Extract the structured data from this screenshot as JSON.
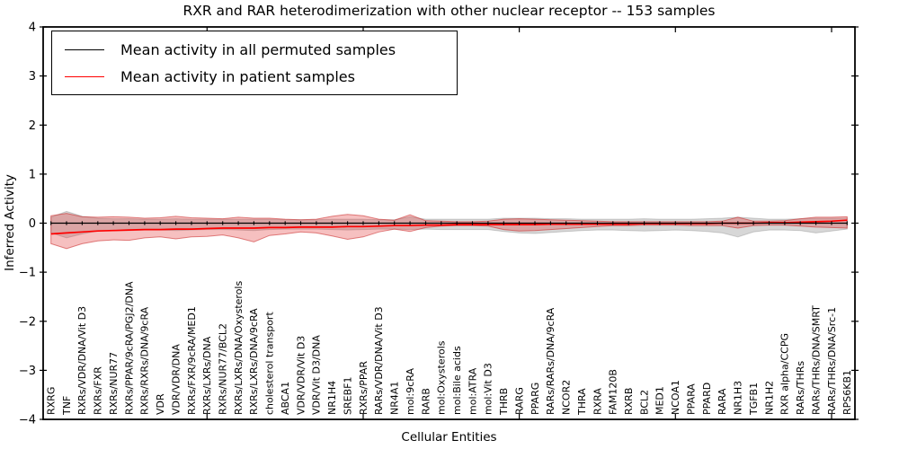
{
  "chart_data": {
    "type": "line",
    "title": "RXR and RAR heterodimerization with other nuclear receptor -- 153 samples",
    "xlabel": "Cellular Entities",
    "ylabel": "Inferred Activity",
    "ylim": [
      -4,
      4
    ],
    "yticks": [
      -4,
      -3,
      -2,
      -1,
      0,
      1,
      2,
      3,
      4
    ],
    "x_major_tick_indices": [
      10,
      20,
      30,
      40,
      50
    ],
    "grid": false,
    "legend_position": "upper left",
    "legend": [
      {
        "label": "Mean activity in all permuted samples",
        "color": "#000000"
      },
      {
        "label": "Mean activity in patient samples",
        "color": "#ff0000"
      }
    ],
    "categories": [
      "RXRG",
      "TNF",
      "RXRs/VDR/DNA/Vit D3",
      "RXRs/FXR",
      "RXRs/NUR77",
      "RXRs/PPAR/9cRA/PGJ2/DNA",
      "RXRs/RXRs/DNA/9cRA",
      "VDR",
      "VDR/VDR/DNA",
      "RXRs/FXR/9cRA/MED1",
      "RXRs/LXRs/DNA",
      "RXRs/NUR77/BCL2",
      "RXRs/LXRs/DNA/Oxysterols",
      "RXRs/LXRs/DNA/9cRA",
      "cholesterol transport",
      "ABCA1",
      "VDR/VDR/Vit D3",
      "VDR/Vit D3/DNA",
      "NR1H4",
      "SREBF1",
      "RXRs/PPAR",
      "RARs/VDR/DNA/Vit D3",
      "NR4A1",
      "mol:9cRA",
      "RARB",
      "mol:Oxysterols",
      "mol:Bile acids",
      "mol:ATRA",
      "mol:Vit D3",
      "THRB",
      "RARG",
      "PPARG",
      "RARs/RARs/DNA/9cRA",
      "NCOR2",
      "THRA",
      "RXRA",
      "FAM120B",
      "RXRB",
      "BCL2",
      "MED1",
      "NCOA1",
      "PPARA",
      "PPARD",
      "RARA",
      "NR1H3",
      "TGFB1",
      "NR1H2",
      "RXR alpha/CCPG",
      "RARs/THRs",
      "RARs/THRs/DNA/SMRT",
      "RARs/THRs/DNA/Src-1",
      "RPS6KB1"
    ],
    "series": [
      {
        "name": "Mean activity in all permuted samples",
        "color": "#000000",
        "marker": "tick",
        "values": [
          0,
          0,
          0,
          0,
          0,
          0,
          0,
          0,
          0,
          0,
          0,
          0,
          0,
          0,
          0,
          0,
          0,
          0,
          0,
          0,
          0,
          0,
          0,
          0,
          0,
          0,
          0,
          0,
          0,
          0,
          0,
          0,
          0,
          0,
          0,
          0,
          0,
          0,
          0,
          0,
          0,
          0,
          0,
          0,
          0,
          0,
          0,
          0,
          0,
          0,
          0,
          0
        ]
      },
      {
        "name": "Mean activity in patient samples",
        "color": "#ff0000",
        "marker": null,
        "values": [
          -0.22,
          -0.2,
          -0.18,
          -0.16,
          -0.15,
          -0.14,
          -0.13,
          -0.13,
          -0.12,
          -0.12,
          -0.11,
          -0.1,
          -0.1,
          -0.1,
          -0.09,
          -0.09,
          -0.08,
          -0.08,
          -0.08,
          -0.07,
          -0.07,
          -0.06,
          -0.05,
          -0.05,
          -0.04,
          -0.04,
          -0.03,
          -0.03,
          -0.03,
          -0.03,
          -0.03,
          -0.03,
          -0.02,
          -0.02,
          -0.02,
          -0.02,
          -0.02,
          -0.02,
          -0.01,
          -0.01,
          -0.01,
          -0.01,
          -0.01,
          0.0,
          0.0,
          0.0,
          0.01,
          0.01,
          0.02,
          0.03,
          0.04,
          0.06
        ]
      }
    ],
    "bands": [
      {
        "name": "permuted-samples-band",
        "fill": "rgba(140,140,140,0.35)",
        "edge": "rgba(110,110,110,0.30)",
        "upper": [
          0.12,
          0.24,
          0.14,
          0.1,
          0.09,
          0.09,
          0.08,
          0.08,
          0.09,
          0.08,
          0.08,
          0.08,
          0.08,
          0.08,
          0.08,
          0.07,
          0.07,
          0.07,
          0.08,
          0.08,
          0.08,
          0.07,
          0.07,
          0.13,
          0.08,
          0.08,
          0.08,
          0.08,
          0.08,
          0.1,
          0.1,
          0.1,
          0.09,
          0.09,
          0.08,
          0.08,
          0.08,
          0.08,
          0.09,
          0.08,
          0.08,
          0.08,
          0.09,
          0.1,
          0.12,
          0.1,
          0.08,
          0.08,
          0.09,
          0.1,
          0.1,
          0.1
        ],
        "lower": [
          -0.2,
          -0.3,
          -0.22,
          -0.16,
          -0.15,
          -0.15,
          -0.14,
          -0.14,
          -0.15,
          -0.14,
          -0.13,
          -0.13,
          -0.14,
          -0.15,
          -0.13,
          -0.12,
          -0.12,
          -0.12,
          -0.13,
          -0.14,
          -0.13,
          -0.12,
          -0.12,
          -0.13,
          -0.12,
          -0.13,
          -0.13,
          -0.13,
          -0.13,
          -0.17,
          -0.2,
          -0.21,
          -0.19,
          -0.17,
          -0.15,
          -0.14,
          -0.14,
          -0.15,
          -0.16,
          -0.15,
          -0.14,
          -0.15,
          -0.17,
          -0.2,
          -0.28,
          -0.18,
          -0.14,
          -0.14,
          -0.15,
          -0.2,
          -0.16,
          -0.12
        ]
      },
      {
        "name": "patient-samples-band",
        "fill": "rgba(228,60,60,0.32)",
        "edge": "rgba(200,35,35,0.55)",
        "upper": [
          0.15,
          0.2,
          0.13,
          0.12,
          0.13,
          0.12,
          0.1,
          0.11,
          0.14,
          0.11,
          0.1,
          0.09,
          0.12,
          0.1,
          0.1,
          0.08,
          0.07,
          0.08,
          0.14,
          0.18,
          0.15,
          0.08,
          0.06,
          0.17,
          0.05,
          0.04,
          0.03,
          0.03,
          0.04,
          0.08,
          0.09,
          0.08,
          0.07,
          0.06,
          0.05,
          0.04,
          0.03,
          0.03,
          0.03,
          0.03,
          0.03,
          0.03,
          0.03,
          0.04,
          0.12,
          0.04,
          0.04,
          0.05,
          0.09,
          0.12,
          0.12,
          0.13
        ],
        "lower": [
          -0.42,
          -0.52,
          -0.42,
          -0.36,
          -0.34,
          -0.35,
          -0.3,
          -0.28,
          -0.32,
          -0.28,
          -0.27,
          -0.24,
          -0.3,
          -0.38,
          -0.25,
          -0.22,
          -0.18,
          -0.2,
          -0.26,
          -0.33,
          -0.28,
          -0.18,
          -0.12,
          -0.17,
          -0.09,
          -0.06,
          -0.05,
          -0.05,
          -0.06,
          -0.13,
          -0.16,
          -0.15,
          -0.13,
          -0.11,
          -0.09,
          -0.07,
          -0.05,
          -0.05,
          -0.04,
          -0.04,
          -0.04,
          -0.05,
          -0.05,
          -0.05,
          -0.1,
          -0.05,
          -0.04,
          -0.04,
          -0.06,
          -0.08,
          -0.09,
          -0.1
        ]
      }
    ]
  }
}
